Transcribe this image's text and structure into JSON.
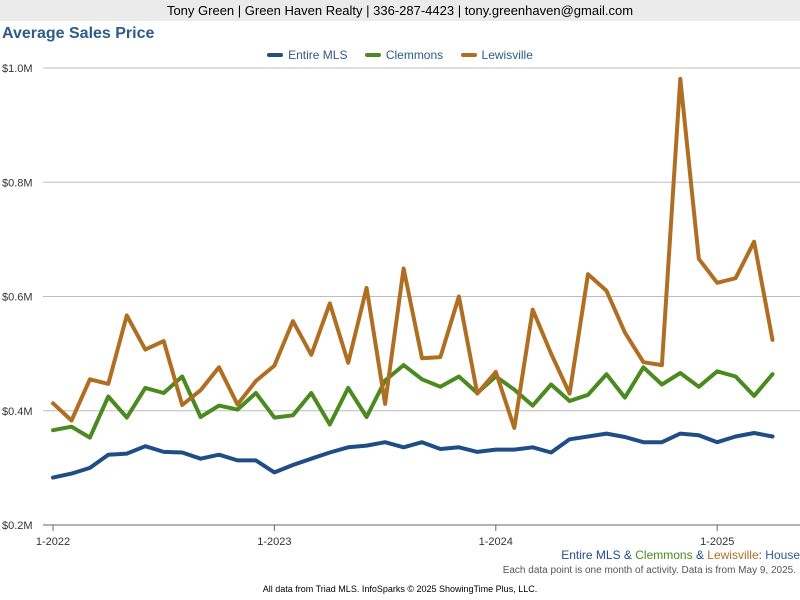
{
  "header": {
    "contact": "Tony Green | Green Haven Realty | 336-287-4423 | tony.greenhaven@gmail.com"
  },
  "colors": {
    "entire_mls": "#1f4e87",
    "clemmons": "#4a8a1e",
    "lewisville": "#b06e23",
    "title": "#2d5b8a"
  },
  "series_caption": {
    "entire": "Entire MLS",
    "amp1": " & ",
    "clemmons": "Clemmons",
    "amp2": " & ",
    "lewisville": "Lewisville",
    "suffix": ": House"
  },
  "note": "Each data point is one month of activity. Data is from May 9, 2025.",
  "footer": "All data from Triad MLS. InfoSparks © 2025 ShowingTime Plus, LLC.",
  "chart_data": {
    "type": "line",
    "title": "Average Sales Price",
    "x_tick_labels": [
      "1-2022",
      "1-2023",
      "1-2024",
      "1-2025"
    ],
    "x_tick_indices": [
      0,
      12,
      24,
      36
    ],
    "y_tick_labels": [
      "$0.2M",
      "$0.4M",
      "$0.6M",
      "$0.8M",
      "$1.0M"
    ],
    "y_tick_values": [
      0.2,
      0.4,
      0.6,
      0.8,
      1.0
    ],
    "ylim": [
      0.2,
      1.0
    ],
    "y_unit": "$M",
    "grid": true,
    "legend_position": "top",
    "months": [
      "Jan 2022",
      "Feb 2022",
      "Mar 2022",
      "Apr 2022",
      "May 2022",
      "Jun 2022",
      "Jul 2022",
      "Aug 2022",
      "Sep 2022",
      "Oct 2022",
      "Nov 2022",
      "Dec 2022",
      "Jan 2023",
      "Feb 2023",
      "Mar 2023",
      "Apr 2023",
      "May 2023",
      "Jun 2023",
      "Jul 2023",
      "Aug 2023",
      "Sep 2023",
      "Oct 2023",
      "Nov 2023",
      "Dec 2023",
      "Jan 2024",
      "Feb 2024",
      "Mar 2024",
      "Apr 2024",
      "May 2024",
      "Jun 2024",
      "Jul 2024",
      "Aug 2024",
      "Sep 2024",
      "Oct 2024",
      "Nov 2024",
      "Dec 2024",
      "Jan 2025",
      "Feb 2025",
      "Mar 2025",
      "Apr 2025"
    ],
    "series": [
      {
        "name": "Entire MLS",
        "color": "#1f4e87",
        "values": [
          0.283,
          0.29,
          0.3,
          0.323,
          0.325,
          0.338,
          0.328,
          0.327,
          0.316,
          0.323,
          0.313,
          0.313,
          0.292,
          0.305,
          0.316,
          0.327,
          0.336,
          0.339,
          0.345,
          0.336,
          0.345,
          0.333,
          0.336,
          0.328,
          0.332,
          0.332,
          0.336,
          0.327,
          0.35,
          0.355,
          0.36,
          0.354,
          0.345,
          0.345,
          0.36,
          0.357,
          0.345,
          0.355,
          0.361,
          0.355
        ]
      },
      {
        "name": "Clemmons",
        "color": "#4a8a1e",
        "values": [
          0.366,
          0.372,
          0.353,
          0.425,
          0.388,
          0.44,
          0.431,
          0.46,
          0.389,
          0.409,
          0.402,
          0.431,
          0.388,
          0.392,
          0.431,
          0.376,
          0.44,
          0.389,
          0.453,
          0.48,
          0.455,
          0.442,
          0.46,
          0.431,
          0.46,
          0.437,
          0.409,
          0.446,
          0.417,
          0.428,
          0.464,
          0.423,
          0.476,
          0.446,
          0.466,
          0.442,
          0.469,
          0.46,
          0.426,
          0.464
        ]
      },
      {
        "name": "Lewisville",
        "color": "#b06e23",
        "values": [
          0.413,
          0.383,
          0.455,
          0.447,
          0.567,
          0.507,
          0.522,
          0.41,
          0.436,
          0.476,
          0.411,
          0.452,
          0.479,
          0.557,
          0.498,
          0.588,
          0.484,
          0.615,
          0.412,
          0.649,
          0.492,
          0.494,
          0.6,
          0.43,
          0.468,
          0.37,
          0.577,
          0.5,
          0.43,
          0.639,
          0.61,
          0.537,
          0.485,
          0.48,
          0.981,
          0.666,
          0.624,
          0.632,
          0.696,
          0.524
        ]
      }
    ]
  }
}
